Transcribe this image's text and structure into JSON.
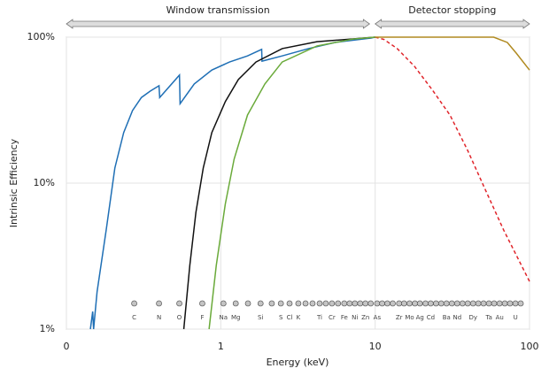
{
  "chart_data": {
    "type": "line",
    "x_label": "Energy (keV)",
    "y_label": "Intrinsic Efficiency",
    "xlog": true,
    "ylog": true,
    "grid": true,
    "xlim": [
      0.1,
      100
    ],
    "xticks": [
      {
        "value": 0.1,
        "label": "0"
      },
      1,
      10,
      100
    ],
    "ylim": [
      1,
      100
    ],
    "yticks": [
      {
        "value": 1,
        "label": "1%"
      },
      {
        "value": 10,
        "label": "10%"
      },
      {
        "value": 100,
        "label": "100%"
      }
    ],
    "annotations": [
      {
        "text": "Window transmission",
        "from": 0.1,
        "to": 9.2
      },
      {
        "text": "Detector stopping",
        "from": 10,
        "to": 100
      }
    ],
    "series": [
      {
        "color": "#1f6fb5",
        "dash": false,
        "x": [
          0.143,
          0.148,
          0.15,
          0.158,
          0.181,
          0.206,
          0.235,
          0.268,
          0.306,
          0.349,
          0.398,
          0.402,
          0.54,
          0.545,
          0.673,
          0.875,
          1.14,
          1.49,
          1.84,
          1.85,
          2.5,
          3.7,
          5.5,
          9.4,
          10
        ],
        "values": [
          1,
          1.32,
          1,
          1.8,
          4.77,
          12.7,
          22.2,
          31.4,
          38.6,
          42.7,
          46.5,
          38.6,
          55,
          35,
          47.8,
          59.5,
          67.6,
          74.4,
          82.5,
          68.5,
          74.4,
          83.5,
          92,
          98.6,
          100
        ]
      },
      {
        "color": "#111111",
        "dash": false,
        "x": [
          0.576,
          0.63,
          0.69,
          0.77,
          0.875,
          1.07,
          1.3,
          1.69,
          2.5,
          4.2,
          10
        ],
        "values": [
          1,
          2.73,
          6.3,
          12.7,
          22.2,
          36.2,
          51.3,
          67.6,
          83.5,
          93.1,
          100
        ]
      },
      {
        "color": "#6aaa3a",
        "dash": false,
        "x": [
          0.84,
          0.935,
          1.07,
          1.22,
          1.49,
          1.93,
          2.5,
          4.2,
          7.2,
          10
        ],
        "values": [
          1,
          2.73,
          7.2,
          14.6,
          29.3,
          47.8,
          67.6,
          87,
          97,
          100
        ]
      },
      {
        "color": "#e0242a",
        "dash": true,
        "x": [
          10,
          11.4,
          13.9,
          18,
          23.5,
          30.5,
          39.8,
          52,
          68,
          100
        ],
        "values": [
          100,
          96.5,
          83.5,
          63,
          43.4,
          29.3,
          16.7,
          8.9,
          4.77,
          2.12
        ]
      },
      {
        "color": "#b08a20",
        "dash": false,
        "x": [
          10,
          58.6,
          71.8,
          82,
          100
        ],
        "values": [
          100,
          100,
          92,
          77.8,
          59.5
        ]
      }
    ],
    "markers": {
      "y": 1.5,
      "x": [
        0.275,
        0.398,
        0.539,
        0.759,
        1.04,
        1.25,
        1.5,
        1.81,
        2.14,
        2.45,
        2.79,
        3.18,
        3.54,
        3.93,
        4.37,
        4.79,
        5.25,
        5.75,
        6.31,
        6.83,
        7.39,
        8.0,
        8.65,
        9.36,
        10.3,
        11.1,
        12.0,
        13.0,
        14.3,
        15.4,
        16.7,
        18.1,
        19.5,
        21.2,
        22.9,
        24.8,
        26.8,
        29.0,
        31.4,
        34.0,
        36.8,
        39.8,
        43.1,
        46.6,
        50.4,
        54.6,
        59.0,
        64.0,
        69.2,
        74.8,
        81.1,
        87.7
      ],
      "labels": [
        "C",
        "N",
        "O",
        "F",
        "Na",
        "Mg",
        null,
        "Si",
        null,
        "S",
        "Cl",
        "K",
        null,
        null,
        "Ti",
        null,
        "Cr",
        null,
        "Fe",
        null,
        "Ni",
        null,
        "Zn",
        null,
        "As",
        null,
        null,
        null,
        "Zr",
        null,
        "Mo",
        null,
        "Ag",
        null,
        "Cd",
        null,
        null,
        "Ba",
        null,
        "Nd",
        null,
        null,
        "Dy",
        null,
        null,
        "Ta",
        null,
        "Au",
        null,
        null,
        "U",
        null
      ]
    }
  }
}
